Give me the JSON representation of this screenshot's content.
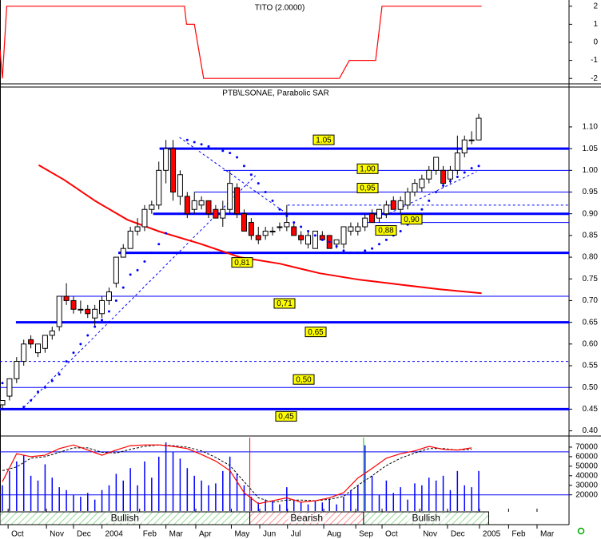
{
  "chart_data": [
    {
      "type": "line",
      "title": "TITO (2.0000)",
      "x": [
        -0.34,
        0,
        0.6,
        25.6,
        25.9,
        27,
        28.3,
        47.4,
        48.8,
        52.5,
        53.4,
        67.4
      ],
      "values": [
        -0.4,
        -2,
        2,
        2,
        1,
        1,
        -2,
        -2,
        -1,
        -1,
        2,
        2
      ],
      "color": "#ff0000",
      "ylim": [
        -2.3,
        2.3
      ],
      "yticks": [
        2,
        1,
        0,
        -1,
        -2
      ]
    },
    {
      "type": "candlestick",
      "title": "PTB\\LSONAE, Parabolic SAR",
      "open": [
        0.46,
        0.48,
        0.52,
        0.56,
        0.61,
        0.58,
        0.59,
        0.62,
        0.64,
        0.71,
        0.7,
        0.68,
        0.68,
        0.66,
        0.67,
        0.7,
        0.74,
        0.8,
        0.82,
        0.86,
        0.87,
        0.91,
        0.92,
        1.0,
        1.05,
        0.94,
        0.94,
        0.91,
        0.92,
        0.93,
        0.91,
        0.89,
        0.91,
        0.96,
        0.9,
        0.88,
        0.85,
        0.85,
        0.86,
        0.87,
        0.87,
        0.87,
        0.85,
        0.83,
        0.82,
        0.85,
        0.85,
        0.83,
        0.83,
        0.86,
        0.86,
        0.87,
        0.9,
        0.89,
        0.9,
        0.93,
        0.91,
        0.92,
        0.95,
        0.96,
        0.98,
        1.0,
        1.0,
        0.98,
        1.0,
        1.04,
        1.07,
        1.07
      ],
      "high": [
        0.47,
        0.52,
        0.57,
        0.61,
        0.62,
        0.6,
        0.62,
        0.64,
        0.71,
        0.74,
        0.71,
        0.7,
        0.69,
        0.69,
        0.71,
        0.73,
        0.8,
        0.83,
        0.87,
        0.89,
        0.92,
        0.93,
        1.02,
        1.07,
        1.07,
        1.0,
        0.95,
        0.95,
        0.94,
        0.93,
        0.92,
        0.93,
        1.0,
        0.97,
        0.91,
        0.89,
        0.87,
        0.87,
        0.87,
        0.88,
        0.92,
        0.88,
        0.86,
        0.86,
        0.86,
        0.86,
        0.85,
        0.84,
        0.87,
        0.88,
        0.88,
        0.9,
        0.91,
        0.91,
        0.93,
        0.94,
        0.94,
        0.96,
        0.98,
        0.99,
        1.01,
        1.03,
        1.01,
        1.01,
        1.08,
        1.08,
        1.09,
        1.13
      ],
      "low": [
        0.45,
        0.47,
        0.51,
        0.55,
        0.59,
        0.57,
        0.58,
        0.61,
        0.63,
        0.69,
        0.67,
        0.67,
        0.66,
        0.64,
        0.66,
        0.69,
        0.73,
        0.8,
        0.82,
        0.85,
        0.86,
        0.9,
        0.91,
        0.97,
        0.93,
        0.92,
        0.89,
        0.9,
        0.91,
        0.89,
        0.89,
        0.87,
        0.9,
        0.89,
        0.86,
        0.84,
        0.83,
        0.84,
        0.85,
        0.86,
        0.86,
        0.85,
        0.83,
        0.82,
        0.82,
        0.84,
        0.82,
        0.82,
        0.82,
        0.85,
        0.85,
        0.86,
        0.88,
        0.88,
        0.89,
        0.91,
        0.9,
        0.91,
        0.94,
        0.95,
        0.97,
        0.99,
        0.96,
        0.97,
        0.99,
        1.03,
        1.06,
        1.07
      ],
      "close": [
        0.47,
        0.52,
        0.56,
        0.6,
        0.6,
        0.6,
        0.62,
        0.63,
        0.71,
        0.7,
        0.68,
        0.68,
        0.67,
        0.68,
        0.7,
        0.72,
        0.8,
        0.82,
        0.86,
        0.87,
        0.91,
        0.92,
        1.0,
        1.05,
        0.95,
        0.99,
        0.9,
        0.93,
        0.93,
        0.9,
        0.89,
        0.91,
        0.97,
        0.9,
        0.86,
        0.85,
        0.84,
        0.86,
        0.86,
        0.87,
        0.88,
        0.85,
        0.84,
        0.85,
        0.86,
        0.84,
        0.82,
        0.84,
        0.87,
        0.87,
        0.87,
        0.89,
        0.88,
        0.91,
        0.92,
        0.91,
        0.93,
        0.95,
        0.97,
        0.98,
        1.0,
        1.03,
        0.97,
        1.0,
        1.04,
        1.07,
        1.07,
        1.12
      ],
      "up_color": "#ffffff",
      "down_color": "#ff0000",
      "ylim": [
        0.39,
        1.19
      ],
      "yticks": [
        {
          "value": 0.4,
          "label": "0.40"
        },
        {
          "value": 0.45,
          "label": "0.45"
        },
        {
          "value": 0.5,
          "label": "0.50"
        },
        {
          "value": 0.55,
          "label": "0.55"
        },
        {
          "value": 0.6,
          "label": "0.60"
        },
        {
          "value": 0.65,
          "label": "0.65"
        },
        {
          "value": 0.7,
          "label": "0.70"
        },
        {
          "value": 0.75,
          "label": "0.75"
        },
        {
          "value": 0.8,
          "label": "0.80"
        },
        {
          "value": 0.85,
          "label": "0.85"
        },
        {
          "value": 0.9,
          "label": "0.90"
        },
        {
          "value": 0.95,
          "label": "0.95"
        },
        {
          "value": 1.0,
          "label": "1.00"
        },
        {
          "value": 1.05,
          "label": "1.05"
        },
        {
          "value": 1.1,
          "label": "1.10"
        }
      ],
      "xlim": [
        -0.34,
        79.7
      ],
      "xticks": [
        {
          "value": 0.8,
          "label": "Oct"
        },
        {
          "value": 6.2,
          "label": "Nov"
        },
        {
          "value": 10,
          "label": "Dec"
        },
        {
          "value": 14,
          "label": "2004"
        },
        {
          "value": 19.3,
          "label": "Feb"
        },
        {
          "value": 23,
          "label": "Mar"
        },
        {
          "value": 27.2,
          "label": "Apr"
        },
        {
          "value": 32.2,
          "label": "May"
        },
        {
          "value": 36.2,
          "label": "Jun"
        },
        {
          "value": 40.1,
          "label": "Jul"
        },
        {
          "value": 45.2,
          "label": "Aug"
        },
        {
          "value": 49.7,
          "label": "Sep"
        },
        {
          "value": 53.4,
          "label": "Oct"
        },
        {
          "value": 58.7,
          "label": "Nov"
        },
        {
          "value": 62.6,
          "label": "Dec"
        },
        {
          "value": 67.1,
          "label": "2005"
        },
        {
          "value": 71.2,
          "label": "Feb"
        },
        {
          "value": 75.2,
          "label": "Mar"
        }
      ],
      "sar": {
        "color": "#0000ff",
        "values": [
          0.51,
          null,
          null,
          0.455,
          0.47,
          0.49,
          0.5,
          0.515,
          0.53,
          0.56,
          0.58,
          0.6,
          0.62,
          0.64,
          0.655,
          0.675,
          0.7,
          0.73,
          0.76,
          0.77,
          0.79,
          0.81,
          0.83,
          0.855,
          null,
          null,
          1.07,
          1.065,
          1.06,
          1.055,
          1.05,
          1.045,
          1.04,
          1.03,
          1.01,
          0.99,
          0.97,
          0.95,
          0.93,
          0.91,
          0.895,
          0.88,
          0.87,
          0.86,
          0.85,
          0.84,
          0.835,
          0.825,
          0.815,
          0.81,
          0.81,
          0.815,
          0.82,
          0.83,
          0.84,
          0.85,
          0.86,
          0.875,
          0.89,
          0.91,
          0.93,
          0.95,
          0.965,
          0.975,
          0.985,
          0.995,
          1.005,
          1.01
        ]
      },
      "moving_average": {
        "color": "#ff0000",
        "x": [
          5.1,
          8.7,
          13.1,
          17.6,
          22.1,
          27.8,
          33.4,
          39,
          44.6,
          50.2,
          55.8,
          61.5,
          67.4
        ],
        "values": [
          1.012,
          0.978,
          0.929,
          0.886,
          0.859,
          0.831,
          0.8,
          0.785,
          0.763,
          0.748,
          0.737,
          0.726,
          0.717
        ]
      },
      "level_color": "#0000ff",
      "levels": [
        {
          "value": 1.05,
          "label": "1.05",
          "style": "thick",
          "start": 22.1
        },
        {
          "value": 1.0,
          "label": "1,00",
          "style": "thin",
          "start": 31.1
        },
        {
          "value": 0.95,
          "label": "0,95",
          "style": "thin",
          "start": 27
        },
        {
          "value": 0.92,
          "style": "dashed",
          "start": 40.1
        },
        {
          "value": 0.9,
          "label": "0,90",
          "style": "thick",
          "start": 21.2
        },
        {
          "value": 0.88,
          "label": "0,88",
          "style": "thin",
          "start": 50.8
        },
        {
          "value": 0.81,
          "label": "0,81",
          "style": "thick",
          "start": 16.3
        },
        {
          "value": 0.71,
          "label": "0,71",
          "style": "thin",
          "start": 7.9
        },
        {
          "value": 0.65,
          "label": "0,65",
          "style": "thick",
          "start": 1.9
        },
        {
          "value": 0.56,
          "style": "dashed"
        },
        {
          "value": 0.5,
          "label": "0,50",
          "style": "thin"
        },
        {
          "value": 0.45,
          "label": "0,45",
          "style": "thick"
        }
      ],
      "trendlines": [
        {
          "x": [
            3,
            35.6
          ],
          "values": [
            0.454,
            0.988
          ]
        },
        {
          "x": [
            24.9,
            40.1
          ],
          "values": [
            1.076,
            0.899
          ]
        },
        {
          "x": [
            53.8,
            66.7
          ],
          "values": [
            0.896,
            0.997
          ]
        }
      ]
    },
    {
      "type": "volume",
      "values": [
        30000,
        45000,
        55000,
        62000,
        40000,
        35000,
        52000,
        38000,
        28000,
        25000,
        20000,
        18000,
        22000,
        15000,
        25000,
        30000,
        42000,
        35000,
        48000,
        30000,
        55000,
        38000,
        60000,
        75000,
        65000,
        58000,
        48000,
        40000,
        35000,
        30000,
        32000,
        45000,
        60000,
        42000,
        30000,
        18000,
        12000,
        15000,
        14000,
        10000,
        28000,
        15000,
        12000,
        10000,
        14000,
        12000,
        16000,
        10000,
        18000,
        25000,
        30000,
        72000,
        40000,
        20000,
        35000,
        22000,
        28000,
        15000,
        32000,
        30000,
        38000,
        35000,
        40000,
        25000,
        45000,
        30000,
        28000,
        45000
      ],
      "color": "#0000ff",
      "ylim": [
        3000,
        80000
      ],
      "yticks": [
        20000,
        30000,
        40000,
        50000,
        60000,
        70000
      ],
      "levels": [
        20000,
        65000
      ],
      "signals": [
        {
          "x": 34.8,
          "color": "#ff0000"
        },
        {
          "x": 50.8,
          "color": "#00cc00"
        }
      ],
      "stochastic": {
        "y2lim": [
          0,
          100
        ],
        "k_color": "#ff0000",
        "d_color": "#000000",
        "x": [
          0,
          2,
          4,
          6,
          8,
          10,
          12,
          14,
          16,
          18,
          20,
          22,
          24,
          26,
          28,
          30,
          32,
          34,
          36,
          38,
          40,
          42,
          44,
          46,
          48,
          50,
          52,
          54,
          56,
          58,
          60,
          62,
          64,
          66
        ],
        "k": [
          40,
          78,
          74,
          76,
          85,
          90,
          83,
          76,
          83,
          89,
          90,
          90,
          88,
          85,
          77,
          68,
          55,
          25,
          10,
          14,
          18,
          12,
          14,
          18,
          25,
          45,
          58,
          72,
          78,
          82,
          88,
          84,
          83,
          86
        ],
        "d": [
          55,
          60,
          72,
          74,
          80,
          86,
          86,
          80,
          79,
          84,
          88,
          90,
          89,
          87,
          82,
          73,
          62,
          40,
          18,
          12,
          15,
          15,
          14,
          16,
          20,
          35,
          48,
          62,
          72,
          79,
          85,
          85,
          83,
          84
        ]
      },
      "trend_bands": [
        {
          "label": "Bullish",
          "start": -0.34,
          "end": 34.8,
          "color": "#00aa00"
        },
        {
          "label": "Bearish",
          "start": 34.8,
          "end": 50.8,
          "color": "#ff0000"
        },
        {
          "label": "Bullish",
          "start": 50.8,
          "end": 68.4,
          "color": "#00aa00"
        }
      ]
    }
  ]
}
